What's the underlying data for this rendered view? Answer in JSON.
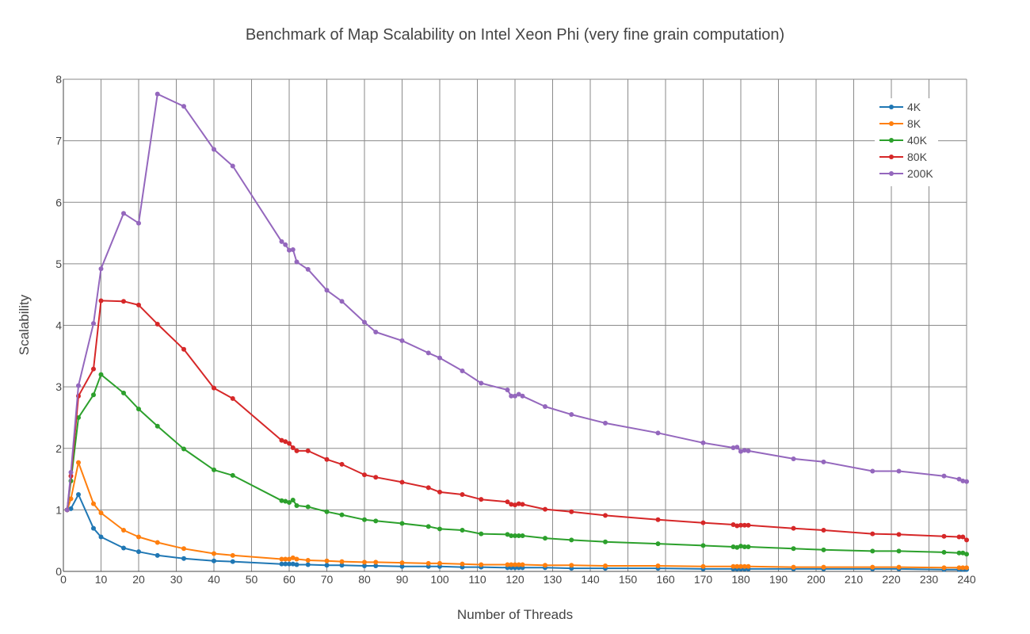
{
  "chart_data": {
    "type": "line",
    "title": "Benchmark of Map Scalability on Intel Xeon Phi (very fine grain computation)",
    "xlabel": "Number of Threads",
    "ylabel": "Scalability",
    "xlim": [
      0,
      240
    ],
    "ylim": [
      0,
      8
    ],
    "x_ticks": [
      0,
      10,
      20,
      30,
      40,
      50,
      60,
      70,
      80,
      90,
      100,
      110,
      120,
      130,
      140,
      150,
      160,
      170,
      180,
      190,
      200,
      210,
      220,
      230,
      240
    ],
    "y_ticks": [
      0,
      1,
      2,
      3,
      4,
      5,
      6,
      7,
      8
    ],
    "grid": true,
    "legend_position": "top-right",
    "series": [
      {
        "name": "4K",
        "color": "#1f77b4",
        "x": [
          1,
          2,
          4,
          8,
          10,
          16,
          20,
          25,
          32,
          40,
          45,
          58,
          59,
          60,
          61,
          62,
          65,
          70,
          74,
          80,
          83,
          90,
          97,
          100,
          106,
          111,
          118,
          119,
          120,
          121,
          122,
          128,
          135,
          144,
          158,
          170,
          178,
          179,
          180,
          181,
          182,
          194,
          202,
          215,
          222,
          234,
          238,
          239,
          240
        ],
        "y": [
          1.0,
          1.02,
          1.25,
          0.7,
          0.56,
          0.38,
          0.32,
          0.26,
          0.21,
          0.17,
          0.16,
          0.12,
          0.12,
          0.12,
          0.12,
          0.11,
          0.11,
          0.1,
          0.1,
          0.09,
          0.09,
          0.08,
          0.08,
          0.08,
          0.07,
          0.07,
          0.06,
          0.06,
          0.06,
          0.06,
          0.06,
          0.06,
          0.05,
          0.05,
          0.05,
          0.04,
          0.04,
          0.04,
          0.04,
          0.04,
          0.04,
          0.04,
          0.04,
          0.04,
          0.04,
          0.03,
          0.03,
          0.03,
          0.03
        ]
      },
      {
        "name": "8K",
        "color": "#ff7f0e",
        "x": [
          1,
          2,
          4,
          8,
          10,
          16,
          20,
          25,
          32,
          40,
          45,
          58,
          59,
          60,
          61,
          62,
          65,
          70,
          74,
          80,
          83,
          90,
          97,
          100,
          106,
          111,
          118,
          119,
          120,
          121,
          122,
          128,
          135,
          144,
          158,
          170,
          178,
          179,
          180,
          181,
          182,
          194,
          202,
          215,
          222,
          234,
          238,
          239,
          240
        ],
        "y": [
          1.0,
          1.18,
          1.77,
          1.1,
          0.95,
          0.67,
          0.56,
          0.47,
          0.37,
          0.29,
          0.26,
          0.2,
          0.2,
          0.2,
          0.22,
          0.2,
          0.18,
          0.17,
          0.16,
          0.15,
          0.15,
          0.14,
          0.13,
          0.13,
          0.12,
          0.11,
          0.11,
          0.11,
          0.11,
          0.11,
          0.11,
          0.1,
          0.1,
          0.09,
          0.09,
          0.08,
          0.08,
          0.08,
          0.08,
          0.08,
          0.08,
          0.07,
          0.07,
          0.07,
          0.07,
          0.06,
          0.06,
          0.06,
          0.06
        ]
      },
      {
        "name": "40K",
        "color": "#2ca02c",
        "x": [
          1,
          2,
          4,
          8,
          10,
          16,
          20,
          25,
          32,
          40,
          45,
          58,
          59,
          60,
          61,
          62,
          65,
          70,
          74,
          80,
          83,
          90,
          97,
          100,
          106,
          111,
          118,
          119,
          120,
          121,
          122,
          128,
          135,
          144,
          158,
          170,
          178,
          179,
          180,
          181,
          182,
          194,
          202,
          215,
          222,
          234,
          238,
          239,
          240
        ],
        "y": [
          1.0,
          1.47,
          2.5,
          2.87,
          3.2,
          2.9,
          2.64,
          2.36,
          1.99,
          1.65,
          1.56,
          1.15,
          1.14,
          1.12,
          1.16,
          1.07,
          1.05,
          0.97,
          0.92,
          0.84,
          0.82,
          0.78,
          0.73,
          0.69,
          0.67,
          0.61,
          0.6,
          0.58,
          0.58,
          0.58,
          0.58,
          0.54,
          0.51,
          0.48,
          0.45,
          0.42,
          0.4,
          0.39,
          0.41,
          0.4,
          0.4,
          0.37,
          0.35,
          0.33,
          0.33,
          0.31,
          0.3,
          0.3,
          0.28
        ]
      },
      {
        "name": "80K",
        "color": "#d62728",
        "x": [
          1,
          2,
          4,
          8,
          10,
          16,
          20,
          25,
          32,
          40,
          45,
          58,
          59,
          60,
          61,
          62,
          65,
          70,
          74,
          80,
          83,
          90,
          97,
          100,
          106,
          111,
          118,
          119,
          120,
          121,
          122,
          128,
          135,
          144,
          158,
          170,
          178,
          179,
          180,
          181,
          182,
          194,
          202,
          215,
          222,
          234,
          238,
          239,
          240
        ],
        "y": [
          1.0,
          1.55,
          2.85,
          3.29,
          4.4,
          4.39,
          4.33,
          4.02,
          3.61,
          2.98,
          2.81,
          2.13,
          2.11,
          2.08,
          2.01,
          1.96,
          1.96,
          1.82,
          1.74,
          1.57,
          1.53,
          1.45,
          1.36,
          1.29,
          1.25,
          1.17,
          1.13,
          1.09,
          1.08,
          1.1,
          1.09,
          1.01,
          0.97,
          0.91,
          0.84,
          0.79,
          0.76,
          0.74,
          0.75,
          0.75,
          0.75,
          0.7,
          0.67,
          0.61,
          0.6,
          0.57,
          0.56,
          0.56,
          0.51
        ]
      },
      {
        "name": "200K",
        "color": "#9467bd",
        "x": [
          1,
          2,
          4,
          8,
          10,
          16,
          20,
          25,
          32,
          40,
          45,
          58,
          59,
          60,
          61,
          62,
          65,
          70,
          74,
          80,
          83,
          90,
          97,
          100,
          106,
          111,
          118,
          119,
          120,
          121,
          122,
          128,
          135,
          144,
          158,
          170,
          178,
          179,
          180,
          181,
          182,
          194,
          202,
          215,
          222,
          234,
          238,
          239,
          240
        ],
        "y": [
          1.0,
          1.61,
          3.02,
          4.03,
          4.92,
          5.82,
          5.66,
          7.76,
          7.56,
          6.86,
          6.59,
          5.36,
          5.31,
          5.22,
          5.23,
          5.03,
          4.91,
          4.57,
          4.39,
          4.05,
          3.89,
          3.75,
          3.55,
          3.47,
          3.26,
          3.06,
          2.95,
          2.85,
          2.85,
          2.88,
          2.85,
          2.68,
          2.55,
          2.41,
          2.25,
          2.09,
          2.01,
          2.02,
          1.95,
          1.97,
          1.96,
          1.83,
          1.78,
          1.63,
          1.63,
          1.55,
          1.5,
          1.47,
          1.46
        ]
      }
    ]
  }
}
